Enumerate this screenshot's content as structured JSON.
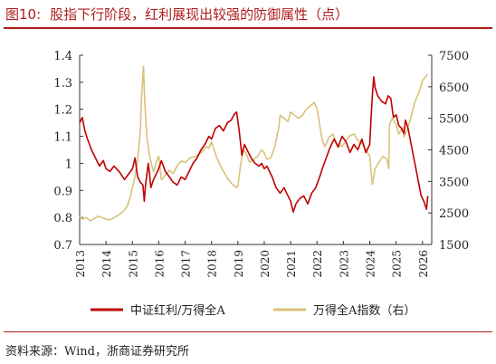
{
  "figure": {
    "number": "图10:",
    "title": "股指下行阶段，红利展现出较强的防御属性（点）",
    "source": "资料来源：Wind，浙商证券研究所"
  },
  "colors": {
    "title": "#b01c1c",
    "series_dividend": "#c00000",
    "series_wind": "#d9c27a"
  },
  "chart_data": {
    "type": "line",
    "title": "股指下行阶段，红利展现出较强的防御属性（点）",
    "x_axis": {
      "ticks": [
        "2013",
        "2014",
        "2015",
        "2016",
        "2017",
        "2018",
        "2019",
        "2020",
        "2021",
        "2022",
        "2023",
        "2024",
        "2025",
        "2026"
      ],
      "range": [
        2013,
        2026.35
      ]
    },
    "y_left": {
      "range": [
        0.7,
        1.4
      ],
      "ticks": [
        "0.7",
        "0.8",
        "0.9",
        "1",
        "1.1",
        "1.2",
        "1.3",
        "1.4"
      ]
    },
    "y_right": {
      "range": [
        1500,
        7500
      ],
      "ticks": [
        "1500",
        "2500",
        "3500",
        "4500",
        "5500",
        "6500",
        "7500"
      ]
    },
    "grid": false,
    "legend_position": "bottom",
    "series": [
      {
        "name": "中证红利/万得全A",
        "axis": "left",
        "x": [
          2013.0,
          2013.1,
          2013.2,
          2013.3,
          2013.45,
          2013.6,
          2013.75,
          2013.9,
          2014.0,
          2014.15,
          2014.3,
          2014.5,
          2014.7,
          2014.85,
          2015.0,
          2015.1,
          2015.2,
          2015.3,
          2015.4,
          2015.45,
          2015.5,
          2015.55,
          2015.6,
          2015.65,
          2015.7,
          2015.8,
          2015.9,
          2016.0,
          2016.1,
          2016.25,
          2016.4,
          2016.55,
          2016.7,
          2016.85,
          2017.0,
          2017.15,
          2017.3,
          2017.45,
          2017.6,
          2017.75,
          2017.9,
          2018.0,
          2018.15,
          2018.3,
          2018.45,
          2018.6,
          2018.75,
          2018.85,
          2018.95,
          2019.05,
          2019.15,
          2019.25,
          2019.35,
          2019.5,
          2019.65,
          2019.8,
          2019.9,
          2020.0,
          2020.1,
          2020.2,
          2020.3,
          2020.45,
          2020.6,
          2020.75,
          2020.9,
          2021.0,
          2021.1,
          2021.2,
          2021.35,
          2021.5,
          2021.65,
          2021.8,
          2021.95,
          2022.1,
          2022.2,
          2022.35,
          2022.5,
          2022.65,
          2022.8,
          2022.95,
          2023.1,
          2023.25,
          2023.4,
          2023.55,
          2023.7,
          2023.85,
          2024.0,
          2024.05,
          2024.1,
          2024.15,
          2024.2,
          2024.3,
          2024.45,
          2024.6,
          2024.7,
          2024.8,
          2024.9,
          2025.0,
          2025.1,
          2025.2,
          2025.3,
          2025.35,
          2025.45,
          2025.55,
          2025.65,
          2025.75,
          2025.85,
          2025.95,
          2026.05,
          2026.15,
          2026.2
        ],
        "y": [
          1.15,
          1.17,
          1.12,
          1.09,
          1.05,
          1.02,
          0.99,
          1.01,
          0.98,
          0.97,
          0.99,
          0.97,
          0.94,
          0.96,
          0.98,
          1.02,
          0.95,
          0.93,
          0.92,
          0.86,
          0.92,
          0.96,
          1.0,
          0.96,
          0.91,
          0.94,
          0.96,
          0.98,
          1.01,
          0.97,
          0.95,
          0.93,
          0.92,
          0.95,
          0.94,
          0.97,
          1.0,
          1.02,
          1.05,
          1.07,
          1.1,
          1.09,
          1.13,
          1.14,
          1.12,
          1.15,
          1.16,
          1.18,
          1.19,
          1.12,
          1.03,
          1.07,
          1.05,
          1.02,
          1.0,
          0.99,
          1.0,
          0.98,
          0.99,
          0.97,
          0.95,
          0.91,
          0.89,
          0.91,
          0.88,
          0.86,
          0.82,
          0.85,
          0.87,
          0.88,
          0.85,
          0.89,
          0.91,
          0.95,
          0.98,
          1.02,
          1.06,
          1.09,
          1.06,
          1.1,
          1.08,
          1.04,
          1.07,
          1.05,
          1.09,
          1.04,
          1.07,
          1.17,
          1.25,
          1.32,
          1.28,
          1.25,
          1.23,
          1.22,
          1.25,
          1.24,
          1.17,
          1.18,
          1.14,
          1.13,
          1.11,
          1.16,
          1.13,
          1.08,
          1.03,
          0.98,
          0.93,
          0.88,
          0.86,
          0.83,
          0.88
        ]
      },
      {
        "name": "万得全A指数（右）",
        "axis": "right",
        "x": [
          2013.0,
          2013.1,
          2013.25,
          2013.4,
          2013.55,
          2013.7,
          2013.85,
          2014.0,
          2014.15,
          2014.3,
          2014.5,
          2014.65,
          2014.8,
          2014.9,
          2015.0,
          2015.1,
          2015.2,
          2015.3,
          2015.35,
          2015.4,
          2015.42,
          2015.47,
          2015.55,
          2015.65,
          2015.8,
          2015.9,
          2016.0,
          2016.1,
          2016.25,
          2016.4,
          2016.55,
          2016.7,
          2016.85,
          2017.0,
          2017.2,
          2017.4,
          2017.6,
          2017.8,
          2017.9,
          2018.0,
          2018.2,
          2018.4,
          2018.6,
          2018.8,
          2018.95,
          2019.0,
          2019.1,
          2019.2,
          2019.3,
          2019.45,
          2019.6,
          2019.75,
          2019.9,
          2020.0,
          2020.1,
          2020.25,
          2020.4,
          2020.55,
          2020.6,
          2020.75,
          2020.9,
          2021.0,
          2021.15,
          2021.3,
          2021.45,
          2021.6,
          2021.75,
          2021.9,
          2022.0,
          2022.1,
          2022.2,
          2022.3,
          2022.45,
          2022.6,
          2022.75,
          2022.85,
          2022.95,
          2023.1,
          2023.25,
          2023.4,
          2023.55,
          2023.7,
          2023.85,
          2024.0,
          2024.05,
          2024.1,
          2024.2,
          2024.35,
          2024.5,
          2024.65,
          2024.72,
          2024.75,
          2024.85,
          2025.0,
          2025.1,
          2025.25,
          2025.3,
          2025.4,
          2025.55,
          2025.7,
          2025.8,
          2025.9,
          2026.0,
          2026.1,
          2026.2
        ],
        "y": [
          2400,
          2300,
          2350,
          2250,
          2320,
          2400,
          2350,
          2300,
          2280,
          2350,
          2450,
          2550,
          2700,
          2950,
          3300,
          3650,
          4200,
          5100,
          6200,
          6900,
          7150,
          6000,
          4900,
          4300,
          3800,
          4100,
          4300,
          3550,
          3700,
          3850,
          3750,
          4000,
          4150,
          4100,
          4250,
          4300,
          4400,
          4600,
          4550,
          4750,
          4250,
          3900,
          3600,
          3400,
          3300,
          3350,
          4000,
          4500,
          4400,
          4100,
          4200,
          4300,
          4500,
          4400,
          4200,
          4250,
          4600,
          5200,
          5600,
          5500,
          5400,
          5700,
          5600,
          5500,
          5600,
          5800,
          5900,
          6000,
          5800,
          5300,
          4800,
          4600,
          4900,
          5000,
          4700,
          4650,
          4600,
          4800,
          4950,
          5000,
          4800,
          4700,
          4500,
          4300,
          3800,
          3400,
          3900,
          4100,
          4300,
          4200,
          3900,
          5300,
          5500,
          5300,
          5000,
          5200,
          4900,
          5100,
          5500,
          6000,
          6200,
          6400,
          6700,
          6800,
          6900
        ]
      }
    ]
  }
}
